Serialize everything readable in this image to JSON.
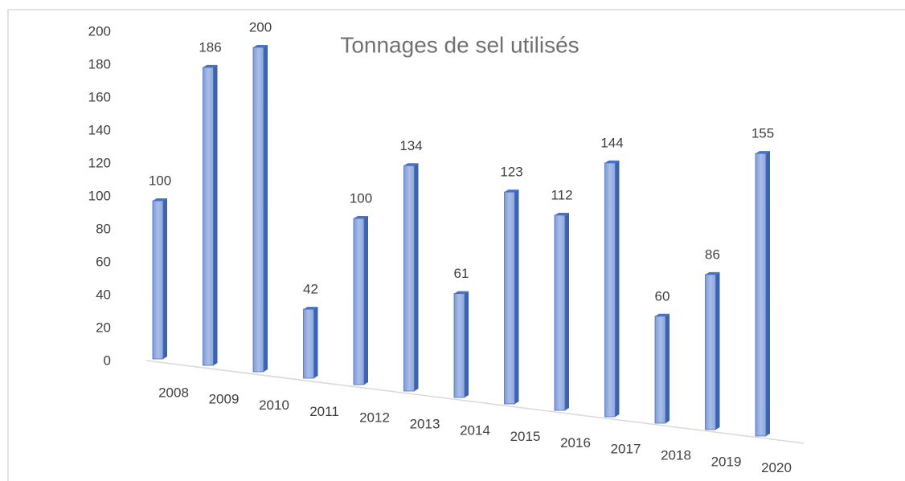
{
  "chart_data": {
    "type": "bar3d",
    "title": "Tonnages de sel utilisés",
    "categories": [
      "2008",
      "2009",
      "2010",
      "2011",
      "2012",
      "2013",
      "2014",
      "2015",
      "2016",
      "2017",
      "2018",
      "2019",
      "2020"
    ],
    "values": [
      100,
      186,
      200,
      42,
      100,
      134,
      61,
      123,
      112,
      144,
      60,
      86,
      155
    ],
    "color": "#8faadc",
    "ylim": [
      0,
      200
    ],
    "yticks": [
      0,
      20,
      40,
      60,
      80,
      100,
      120,
      140,
      160,
      180,
      200
    ]
  }
}
